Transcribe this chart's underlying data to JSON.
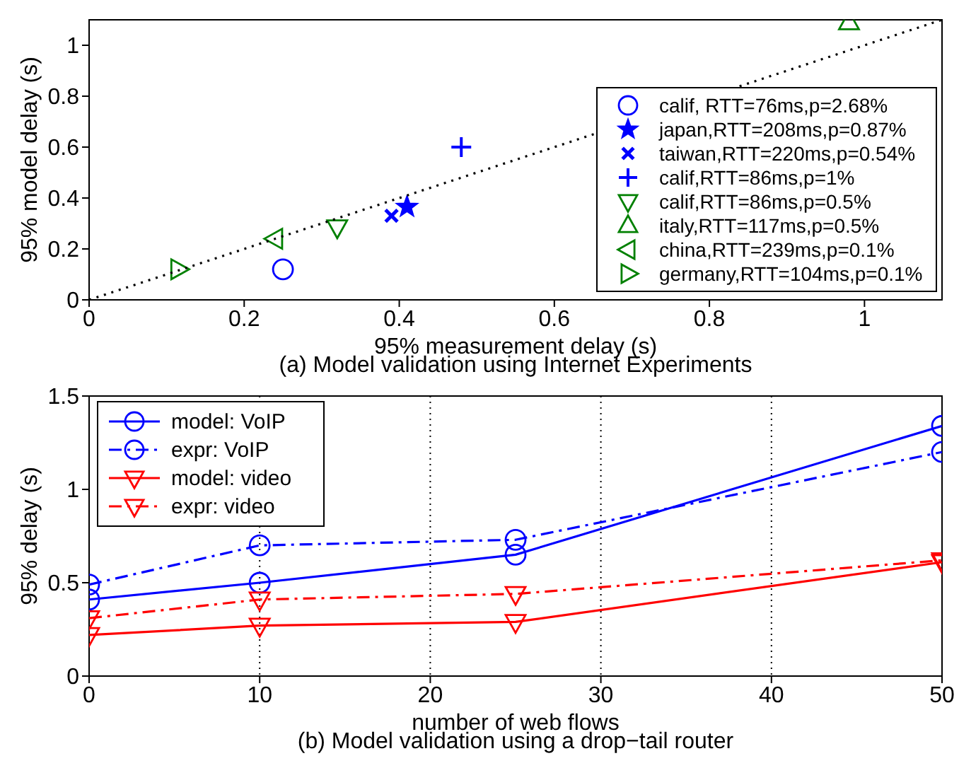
{
  "chart_data": [
    {
      "type": "scatter",
      "xlabel": "95% measurement delay (s)",
      "ylabel": "95% model delay (s)",
      "annotations": [
        "(a) Model validation using Internet Experiments"
      ],
      "xlim": [
        0,
        1.1
      ],
      "xticks": [
        0,
        0.2,
        0.4,
        0.6,
        0.8,
        1
      ],
      "ylim": [
        0,
        1.1
      ],
      "yticks": [
        0,
        0.2,
        0.4,
        0.6,
        0.8,
        1
      ],
      "grid": false,
      "legend": "bottom right",
      "series": [
        {
          "name": "calif, RTT=76ms,p=2.68%",
          "color": "#0000ff",
          "marker": "circle",
          "x": [
            0.25
          ],
          "values": [
            0.12
          ]
        },
        {
          "name": "japan,RTT=208ms,p=0.87%",
          "color": "#0000ff",
          "marker": "star",
          "x": [
            0.41
          ],
          "values": [
            0.365
          ]
        },
        {
          "name": "taiwan,RTT=220ms,p=0.54%",
          "color": "#0000ff",
          "marker": "x",
          "x": [
            0.39
          ],
          "values": [
            0.33
          ]
        },
        {
          "name": "calif,RTT=86ms,p=1%",
          "color": "#0000ff",
          "marker": "plus",
          "x": [
            0.48
          ],
          "values": [
            0.6
          ]
        },
        {
          "name": "calif,RTT=86ms,p=0.5%",
          "color": "#008000",
          "marker": "triangle-down",
          "x": [
            0.32
          ],
          "values": [
            0.285
          ]
        },
        {
          "name": "italy,RTT=117ms,p=0.5%",
          "color": "#008000",
          "marker": "triangle",
          "x": [
            0.98
          ],
          "values": [
            1.09
          ]
        },
        {
          "name": "china,RTT=239ms,p=0.1%",
          "color": "#008000",
          "marker": "triangle-left",
          "x": [
            0.24
          ],
          "values": [
            0.24
          ]
        },
        {
          "name": "germany,RTT=104ms,p=0.1%",
          "color": "#008000",
          "marker": "triangle-right",
          "x": [
            0.115
          ],
          "values": [
            0.12
          ]
        },
        {
          "type": "line",
          "color": "#000000",
          "marker": "none",
          "line_style": "dotted",
          "x": [
            0,
            1.1
          ],
          "values": [
            0,
            1.1
          ]
        }
      ]
    },
    {
      "type": "line",
      "xlabel": "number of web flows",
      "ylabel": "95% delay (s)",
      "annotations": [
        "(b) Model validation using a drop−tail router"
      ],
      "x": [
        0,
        10,
        25,
        50
      ],
      "xlim": [
        0,
        50
      ],
      "xticks": [
        0,
        10,
        20,
        30,
        40,
        50
      ],
      "ylim": [
        0,
        1.5
      ],
      "yticks": [
        0,
        0.5,
        1,
        1.5
      ],
      "grid": "x",
      "legend": "top left",
      "series": [
        {
          "name": "model: VoIP",
          "color": "#0000ff",
          "marker": "circle",
          "line_style": "solid",
          "values": [
            0.41,
            0.5,
            0.65,
            1.34
          ]
        },
        {
          "name": "expr: VoIP",
          "color": "#0000ff",
          "marker": "circle",
          "line_style": "dashdot",
          "values": [
            0.49,
            0.7,
            0.73,
            1.2
          ]
        },
        {
          "name": "model: video",
          "color": "#ff0000",
          "marker": "triangle-down",
          "line_style": "solid",
          "values": [
            0.22,
            0.27,
            0.29,
            0.61
          ]
        },
        {
          "name": "expr: video",
          "color": "#ff0000",
          "marker": "triangle-down",
          "line_style": "dashdot",
          "values": [
            0.31,
            0.41,
            0.44,
            0.62
          ]
        }
      ]
    }
  ]
}
